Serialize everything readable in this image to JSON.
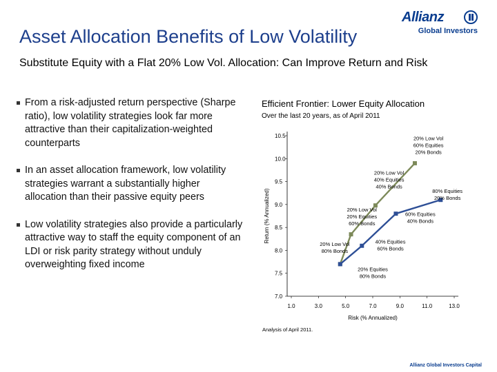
{
  "slide": {
    "title": "Asset Allocation Benefits of Low Volatility",
    "subtitle": "Substitute Equity with a Flat 20% Low Vol. Allocation: Can Improve Return and Risk",
    "bullets": [
      "From a risk-adjusted return perspective (Sharpe ratio), low volatility strategies look far more attractive than their capitalization-weighted counterparts",
      "In an asset allocation framework, low volatility strategies warrant a substantially higher allocation than their passive equity peers",
      "Low volatility strategies also provide a particularly attractive way to staff the equity component of an LDI or risk parity strategy without unduly overweighting fixed income"
    ],
    "footnote": "Analysis of April 2011.",
    "footer_brand": "Allianz Global Investors Capital"
  },
  "logo": {
    "wordmark": "Allianz",
    "tagline": "Global Investors",
    "icon": "allianz-eagle-icon"
  },
  "colors": {
    "title": "#1d3f8c",
    "low_vol_series": "#7d8a5a",
    "traditional_series": "#2e4f96",
    "axis": "#000000"
  },
  "chart_data": {
    "type": "line",
    "title": "Efficient Frontier: Lower Equity Allocation",
    "subtitle": "Over the last 20 years, as of April 2011",
    "xlabel": "Risk (% Annualized)",
    "ylabel": "Return (% Annualized)",
    "xlim": [
      1.0,
      13.0
    ],
    "ylim": [
      7.0,
      10.5
    ],
    "xticks": [
      "1.0",
      "3.0",
      "5.0",
      "7.0",
      "9.0",
      "11.0",
      "13.0"
    ],
    "yticks": [
      "7.0",
      "7.5",
      "8.0",
      "8.5",
      "9.0",
      "9.5",
      "10.0",
      "10.5"
    ],
    "grid": false,
    "legend": "none",
    "series": [
      {
        "key": "low_vol",
        "points": [
          {
            "x": 4.6,
            "y": 7.7
          },
          {
            "x": 5.4,
            "y": 8.35
          },
          {
            "x": 7.2,
            "y": 8.98
          },
          {
            "x": 10.1,
            "y": 9.9
          }
        ]
      },
      {
        "key": "traditional",
        "points": [
          {
            "x": 4.6,
            "y": 7.7
          },
          {
            "x": 6.2,
            "y": 8.1
          },
          {
            "x": 8.7,
            "y": 8.8
          },
          {
            "x": 12.0,
            "y": 9.1
          }
        ]
      }
    ],
    "annotations": [
      {
        "lines": [
          "20% Low Vol",
          "80% Bonds"
        ],
        "x": 4.2,
        "y": 8.1
      },
      {
        "lines": [
          "20% Low Vol",
          "20% Equities",
          "60% Bonds"
        ],
        "x": 6.2,
        "y": 8.85
      },
      {
        "lines": [
          "20% Low Vol",
          "40% Equities",
          "40% Bonds"
        ],
        "x": 8.2,
        "y": 9.65
      },
      {
        "lines": [
          "20% Low Vol",
          "60% Equities",
          "20% Bonds"
        ],
        "x": 11.1,
        "y": 10.4
      },
      {
        "lines": [
          "20% Equities",
          "80% Bonds"
        ],
        "x": 7.0,
        "y": 7.55
      },
      {
        "lines": [
          "40% Equities",
          "60% Bonds"
        ],
        "x": 8.3,
        "y": 8.15
      },
      {
        "lines": [
          "60% Equities",
          "40% Bonds"
        ],
        "x": 10.5,
        "y": 8.75
      },
      {
        "lines": [
          "80% Equities",
          "20% Bonds"
        ],
        "x": 12.5,
        "y": 9.25
      }
    ]
  }
}
